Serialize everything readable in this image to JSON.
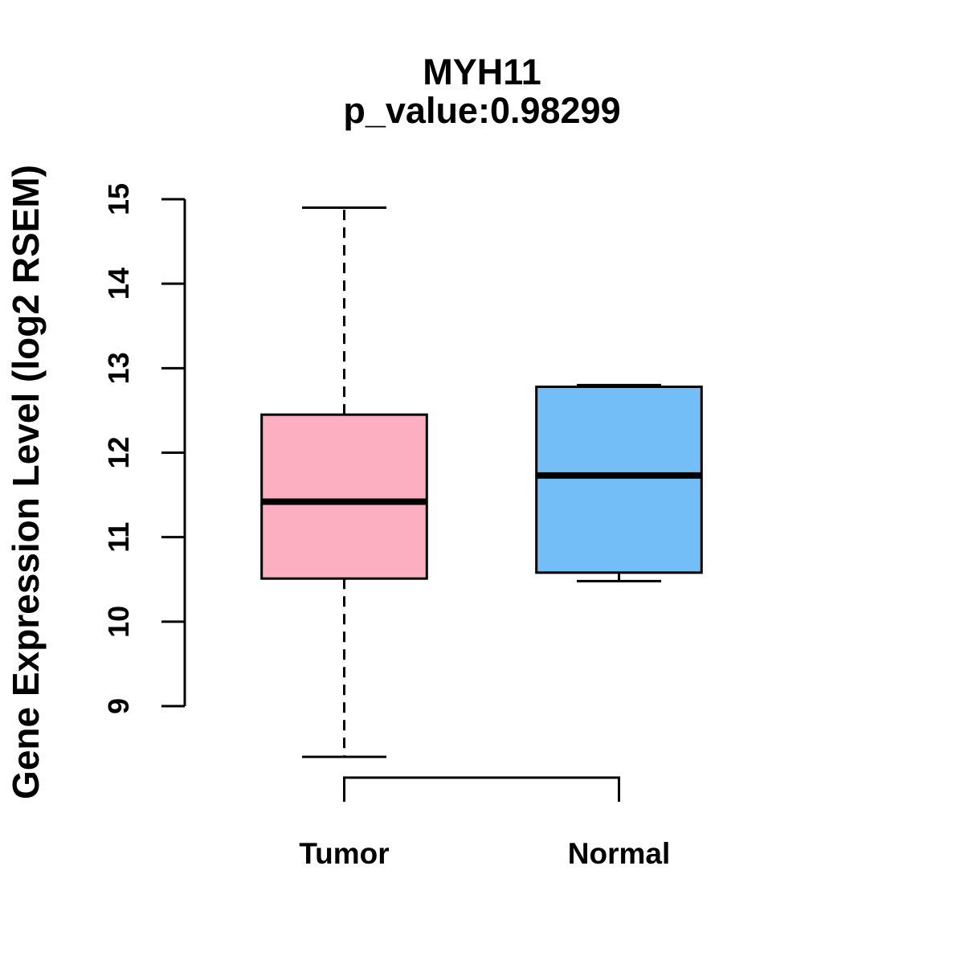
{
  "chart_data": {
    "type": "boxplot",
    "title": "MYH11",
    "subtitle": "p_value:0.98299",
    "ylabel": "Gene Expression Level (log2 RSEM)",
    "categories": [
      "Tumor",
      "Normal"
    ],
    "yticks": [
      9,
      10,
      11,
      12,
      13,
      14,
      15
    ],
    "ylim_axis": [
      9,
      15
    ],
    "grid": false,
    "legend": "none",
    "series": [
      {
        "name": "Tumor",
        "color": "#FCAFC1",
        "lower_whisker": 8.4,
        "q1": 10.51,
        "median": 11.42,
        "q3": 12.45,
        "upper_whisker": 14.9
      },
      {
        "name": "Normal",
        "color": "#74BEF8",
        "lower_whisker": 10.48,
        "q1": 10.58,
        "median": 11.73,
        "q3": 12.78,
        "upper_whisker": 12.8
      }
    ],
    "box_border_color": "#000000",
    "median_color": "#000000",
    "axis_color": "#000000",
    "background": "#FFFFFF"
  }
}
